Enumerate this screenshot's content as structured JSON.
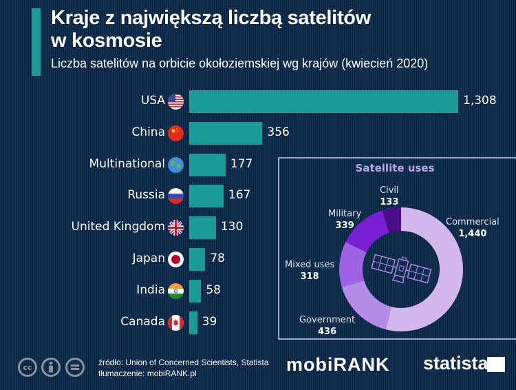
{
  "header": {
    "title_line1": "Kraje z największą liczbą satelitów",
    "title_line2": "w kosmosie",
    "subtitle": "Liczba satelitów na orbicie okołoziemskiej wg krajów (kwiecień 2020)"
  },
  "colors": {
    "bar": "#1a9a99",
    "accent": "#1a9a99",
    "background": "#0c2444"
  },
  "chart_data": [
    {
      "type": "bar",
      "orientation": "horizontal",
      "title": "Kraje z największą liczbą satelitów w kosmosie",
      "categories": [
        "USA",
        "China",
        "Multinational",
        "Russia",
        "United Kingdom",
        "Japan",
        "India",
        "Canada"
      ],
      "values": [
        1308,
        356,
        177,
        167,
        130,
        78,
        58,
        39
      ],
      "value_labels": [
        "1,308",
        "356",
        "177",
        "167",
        "130",
        "78",
        "58",
        "39"
      ],
      "flags": [
        "us-flag-icon",
        "china-flag-icon",
        "globe-icon",
        "russia-flag-icon",
        "uk-flag-icon",
        "japan-flag-icon",
        "india-flag-icon",
        "canada-flag-icon"
      ],
      "xlim": [
        0,
        1308
      ]
    },
    {
      "type": "pie",
      "donut": true,
      "title": "Satellite uses",
      "categories": [
        "Commercial",
        "Government",
        "Mixed uses",
        "Military",
        "Civil"
      ],
      "values": [
        1440,
        436,
        318,
        339,
        133
      ],
      "value_labels": [
        "1,440",
        "436",
        "318",
        "339",
        "133"
      ],
      "colors": [
        "#d2b6ec",
        "#b48ce6",
        "#9d63e3",
        "#7a1fd6",
        "#4a0e8a"
      ]
    }
  ],
  "footer": {
    "source": "źródło: Union of Concerned Scientists, Statista",
    "translation": "tłumaczenie: mobiRANK.pl",
    "cc_label": "cc",
    "mobirank_logo": "mobiRANK",
    "statista_logo": "statista"
  }
}
